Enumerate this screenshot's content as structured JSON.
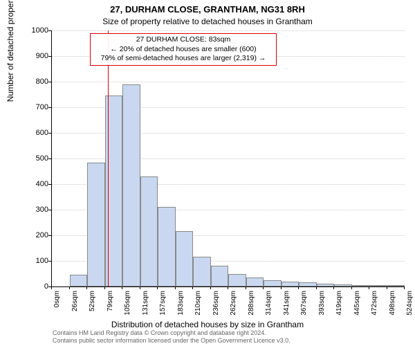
{
  "title": "27, DURHAM CLOSE, GRANTHAM, NG31 8RH",
  "subtitle": "Size of property relative to detached houses in Grantham",
  "ylabel": "Number of detached properties",
  "xlabel": "Distribution of detached houses by size in Grantham",
  "chart": {
    "type": "histogram",
    "ylim": [
      0,
      1000
    ],
    "ytick_step": 100,
    "xtick_labels": [
      "0sqm",
      "26sqm",
      "52sqm",
      "79sqm",
      "105sqm",
      "131sqm",
      "157sqm",
      "183sqm",
      "210sqm",
      "236sqm",
      "262sqm",
      "288sqm",
      "314sqm",
      "341sqm",
      "367sqm",
      "393sqm",
      "419sqm",
      "445sqm",
      "472sqm",
      "498sqm",
      "524sqm"
    ],
    "values": [
      0,
      45,
      485,
      745,
      790,
      430,
      310,
      215,
      115,
      80,
      50,
      35,
      25,
      18,
      15,
      10,
      8,
      6,
      4,
      3
    ],
    "bar_fill": "#c9d8f0",
    "bar_border": "#888888",
    "grid_color": "#cccccc",
    "background": "#ffffff",
    "axis_color": "#000000"
  },
  "annotation": {
    "line1": "27 DURHAM CLOSE: 83sqm",
    "line2": "← 20% of detached houses are smaller (600)",
    "line3": "79% of semi-detached houses are larger (2,319) →",
    "marker_value_sqm": 83,
    "border_color": "#dd0000"
  },
  "footer": {
    "line1": "Contains HM Land Registry data © Crown copyright and database right 2024.",
    "line2": "Contains public sector information licensed under the Open Government Licence v3.0."
  }
}
